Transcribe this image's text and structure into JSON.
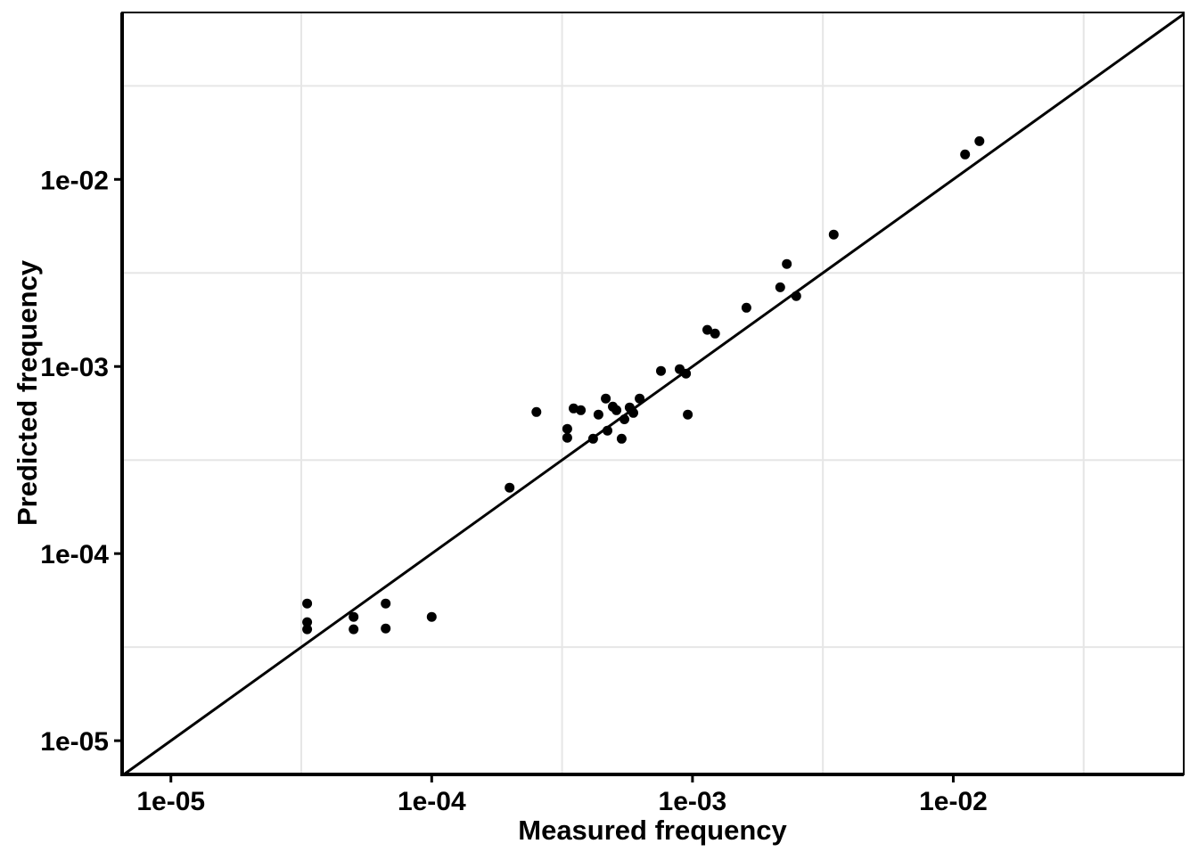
{
  "figure": {
    "background_color": "#ffffff",
    "panel_border_color": "#000000",
    "axis_line_color": "#000000",
    "grid_color": "#e6e6e6",
    "point_color": "#000000",
    "identity_line_color": "#000000"
  },
  "chart_data": {
    "type": "scatter",
    "title": "",
    "xlabel": "Measured frequency",
    "ylabel": "Predicted frequency",
    "x_scale": "log10",
    "y_scale": "log10",
    "xlim": [
      6.5e-06,
      0.0765
    ],
    "ylim": [
      6.6e-06,
      0.078
    ],
    "grid": "minor-only",
    "legend": "none",
    "x_ticks": [
      {
        "value": 1e-05,
        "label": "1e-05"
      },
      {
        "value": 0.0001,
        "label": "1e-04"
      },
      {
        "value": 0.001,
        "label": "1e-03"
      },
      {
        "value": 0.01,
        "label": "1e-02"
      }
    ],
    "y_ticks": [
      {
        "value": 1e-05,
        "label": "1e-05"
      },
      {
        "value": 0.0001,
        "label": "1e-04"
      },
      {
        "value": 0.001,
        "label": "1e-03"
      },
      {
        "value": 0.01,
        "label": "1e-02"
      }
    ],
    "x_minor_gridlines": [
      3.162e-05,
      0.0003162,
      0.003162,
      0.03162
    ],
    "y_minor_gridlines": [
      3.162e-05,
      0.0003162,
      0.003162,
      0.03162
    ],
    "identity_line": "y = x",
    "points": [
      {
        "x": 3.33e-05,
        "y": 5.41e-05
      },
      {
        "x": 3.33e-05,
        "y": 4.3e-05
      },
      {
        "x": 3.33e-05,
        "y": 3.94e-05
      },
      {
        "x": 5.02e-05,
        "y": 4.59e-05
      },
      {
        "x": 5.02e-05,
        "y": 3.94e-05
      },
      {
        "x": 6.66e-05,
        "y": 5.41e-05
      },
      {
        "x": 6.66e-05,
        "y": 3.98e-05
      },
      {
        "x": 0.0001,
        "y": 4.59e-05
      },
      {
        "x": 0.000199,
        "y": 0.000225
      },
      {
        "x": 0.000252,
        "y": 0.000571
      },
      {
        "x": 0.00035,
        "y": 0.000597
      },
      {
        "x": 0.000373,
        "y": 0.000584
      },
      {
        "x": 0.000331,
        "y": 0.000464
      },
      {
        "x": 0.000331,
        "y": 0.000416
      },
      {
        "x": 0.000416,
        "y": 0.000411
      },
      {
        "x": 0.000436,
        "y": 0.000553
      },
      {
        "x": 0.000465,
        "y": 0.000674
      },
      {
        "x": 0.000472,
        "y": 0.000454
      },
      {
        "x": 0.000495,
        "y": 0.00061
      },
      {
        "x": 0.000511,
        "y": 0.000584
      },
      {
        "x": 0.000535,
        "y": 0.000411
      },
      {
        "x": 0.000548,
        "y": 0.000522
      },
      {
        "x": 0.000574,
        "y": 0.000604
      },
      {
        "x": 0.000593,
        "y": 0.000565
      },
      {
        "x": 0.000627,
        "y": 0.000674
      },
      {
        "x": 0.000757,
        "y": 0.000947
      },
      {
        "x": 0.000893,
        "y": 0.000968
      },
      {
        "x": 0.000944,
        "y": 0.000916
      },
      {
        "x": 0.000959,
        "y": 0.000553
      },
      {
        "x": 0.00114,
        "y": 0.00157
      },
      {
        "x": 0.00122,
        "y": 0.0015
      },
      {
        "x": 0.00161,
        "y": 0.00206
      },
      {
        "x": 0.00217,
        "y": 0.00265
      },
      {
        "x": 0.0023,
        "y": 0.00353
      },
      {
        "x": 0.0025,
        "y": 0.00238
      },
      {
        "x": 0.00348,
        "y": 0.00507
      },
      {
        "x": 0.0111,
        "y": 0.0136
      },
      {
        "x": 0.0126,
        "y": 0.016
      }
    ]
  }
}
